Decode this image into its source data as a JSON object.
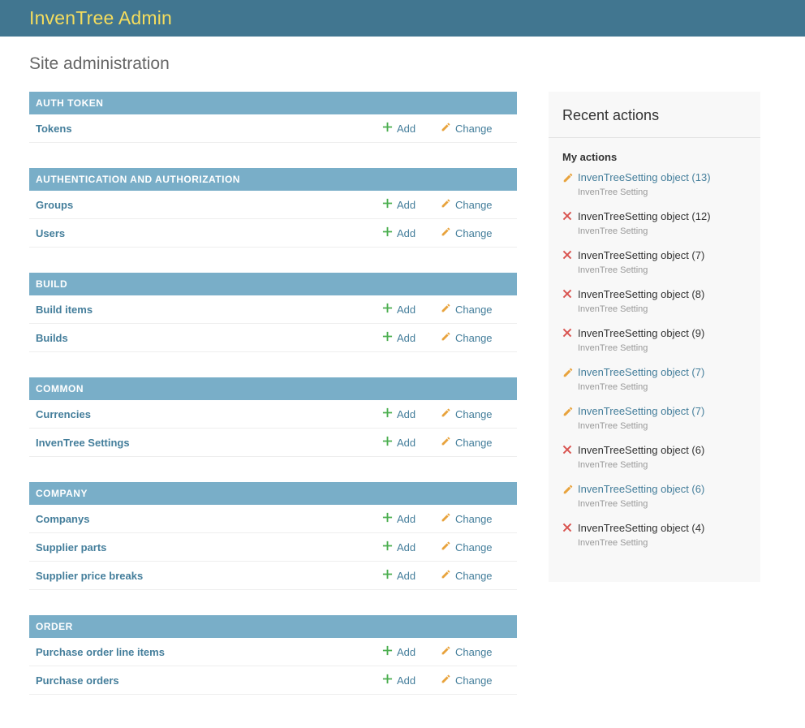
{
  "header": {
    "title": "InvenTree Admin"
  },
  "page": {
    "title": "Site administration"
  },
  "main": {
    "add_label": "Add",
    "change_label": "Change",
    "sections": [
      {
        "title": "AUTH TOKEN",
        "models": [
          {
            "label": "Tokens"
          }
        ]
      },
      {
        "title": "AUTHENTICATION AND AUTHORIZATION",
        "models": [
          {
            "label": "Groups"
          },
          {
            "label": "Users"
          }
        ]
      },
      {
        "title": "BUILD",
        "models": [
          {
            "label": "Build items"
          },
          {
            "label": "Builds"
          }
        ]
      },
      {
        "title": "COMMON",
        "models": [
          {
            "label": "Currencies"
          },
          {
            "label": "InvenTree Settings"
          }
        ]
      },
      {
        "title": "COMPANY",
        "models": [
          {
            "label": "Companys"
          },
          {
            "label": "Supplier parts"
          },
          {
            "label": "Supplier price breaks"
          }
        ]
      },
      {
        "title": "ORDER",
        "models": [
          {
            "label": "Purchase order line items"
          },
          {
            "label": "Purchase orders"
          }
        ]
      }
    ]
  },
  "recent_actions": {
    "title": "Recent actions",
    "subtitle": "My actions",
    "items": [
      {
        "action": "change",
        "label": "InvenTreeSetting object (13)",
        "type": "InvenTree Setting",
        "is_link": true
      },
      {
        "action": "delete",
        "label": "InvenTreeSetting object (12)",
        "type": "InvenTree Setting",
        "is_link": false
      },
      {
        "action": "delete",
        "label": "InvenTreeSetting object (7)",
        "type": "InvenTree Setting",
        "is_link": false
      },
      {
        "action": "delete",
        "label": "InvenTreeSetting object (8)",
        "type": "InvenTree Setting",
        "is_link": false
      },
      {
        "action": "delete",
        "label": "InvenTreeSetting object (9)",
        "type": "InvenTree Setting",
        "is_link": false
      },
      {
        "action": "change",
        "label": "InvenTreeSetting object (7)",
        "type": "InvenTree Setting",
        "is_link": true
      },
      {
        "action": "change",
        "label": "InvenTreeSetting object (7)",
        "type": "InvenTree Setting",
        "is_link": true
      },
      {
        "action": "delete",
        "label": "InvenTreeSetting object (6)",
        "type": "InvenTree Setting",
        "is_link": false
      },
      {
        "action": "change",
        "label": "InvenTreeSetting object (6)",
        "type": "InvenTree Setting",
        "is_link": true
      },
      {
        "action": "delete",
        "label": "InvenTreeSetting object (4)",
        "type": "InvenTree Setting",
        "is_link": false
      }
    ]
  },
  "icons": {
    "add": "plus-icon",
    "change": "pencil-icon",
    "delete": "cross-icon"
  },
  "colors": {
    "header_bg": "#417690",
    "brand_text": "#f5dd5d",
    "caption_bg": "#79aec8",
    "link": "#447e9b",
    "add_green": "#4caf50",
    "change_yellow": "#e8a33d",
    "delete_red": "#d9534f",
    "panel_bg": "#f8f8f8"
  }
}
